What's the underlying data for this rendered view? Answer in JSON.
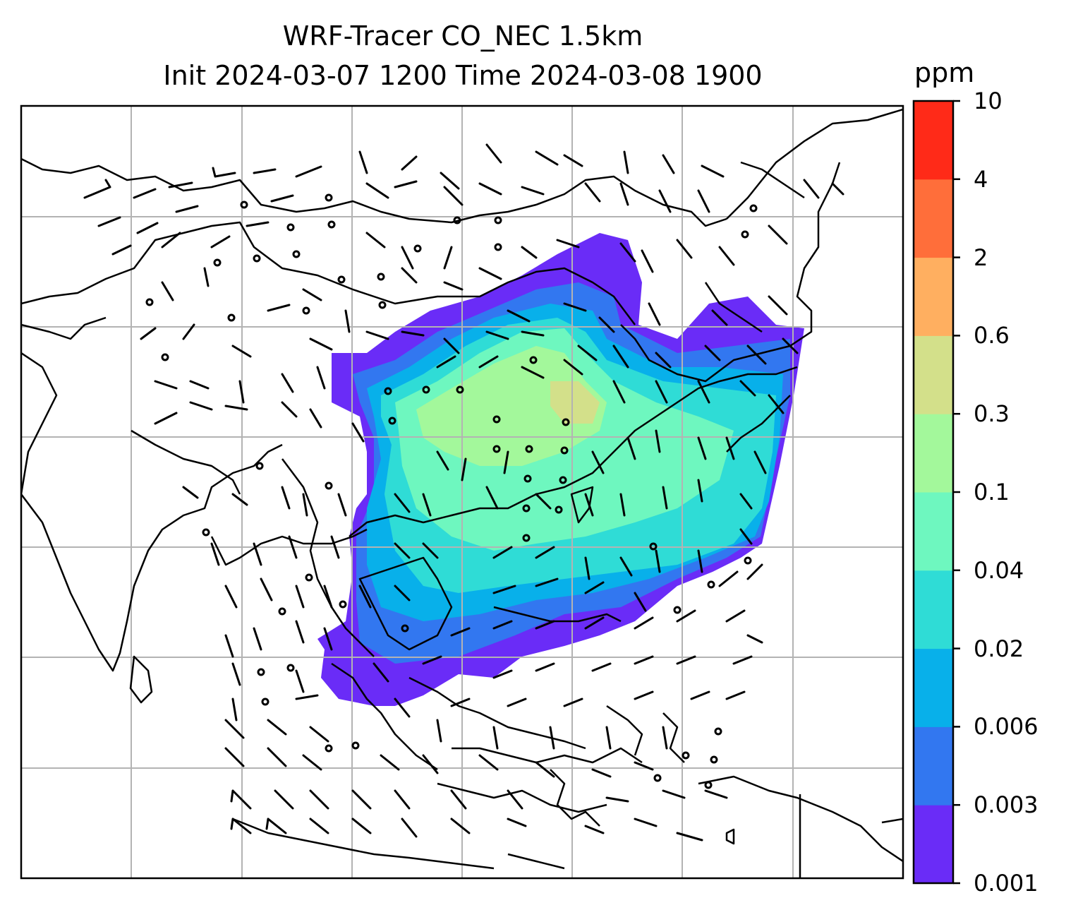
{
  "title": {
    "line1": "WRF-Tracer CO_NEC 1.5km",
    "line2": "Init 2024-03-07 1200 Time 2024-03-08 1900"
  },
  "colorbar": {
    "unit": "ppm",
    "levels": [
      "0.001",
      "0.003",
      "0.006",
      "0.02",
      "0.04",
      "0.1",
      "0.3",
      "0.6",
      "2",
      "4",
      "10"
    ],
    "colors": [
      "#6a2cf7",
      "#3277f0",
      "#08b0ea",
      "#2fdcd6",
      "#6ef7bf",
      "#a3f89b",
      "#d3e08a",
      "#ffaf60",
      "#ff6e3a",
      "#ff2a18"
    ]
  },
  "map": {
    "background": "#ffffff",
    "gridline_color": "#b3b3b3",
    "coastline_color": "#000000"
  }
}
